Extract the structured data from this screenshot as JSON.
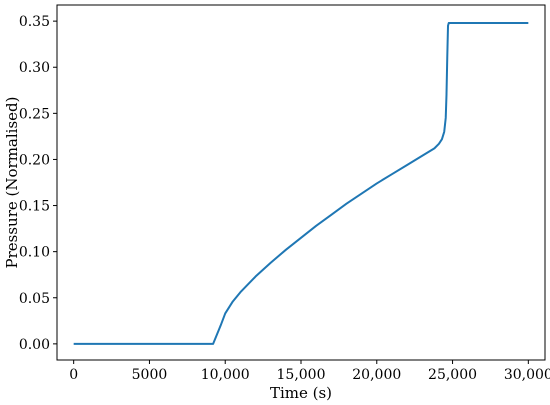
{
  "chart_data": {
    "type": "line",
    "xlabel": "Time (s)",
    "ylabel": "Pressure (Normalised)",
    "xlim": [
      -1100,
      31100
    ],
    "ylim": [
      -0.0175,
      0.3675
    ],
    "x_ticks": [
      0,
      5000,
      10000,
      15000,
      20000,
      25000,
      30000
    ],
    "x_tick_labels": [
      "0",
      "5000",
      "10,000",
      "15,000",
      "20,000",
      "25,000",
      "30,000"
    ],
    "y_ticks": [
      0.0,
      0.05,
      0.1,
      0.15,
      0.2,
      0.25,
      0.3,
      0.35
    ],
    "y_tick_labels": [
      "0.00",
      "0.05",
      "0.10",
      "0.15",
      "0.20",
      "0.25",
      "0.30",
      "0.35"
    ],
    "grid": false,
    "series_color": "#1f77b4",
    "series": [
      {
        "x": [
          0,
          9200,
          9400,
          9700,
          10000,
          10500,
          11000,
          12000,
          13000,
          14000,
          15000,
          16000,
          17000,
          18000,
          19000,
          20000,
          21000,
          22000,
          23000,
          23800,
          24100,
          24300,
          24450,
          24550,
          24600,
          24650,
          24700,
          24750,
          30000
        ],
        "y": [
          0,
          0,
          0.008,
          0.02,
          0.033,
          0.046,
          0.056,
          0.073,
          0.088,
          0.102,
          0.115,
          0.128,
          0.14,
          0.152,
          0.163,
          0.174,
          0.184,
          0.194,
          0.204,
          0.212,
          0.217,
          0.222,
          0.23,
          0.245,
          0.27,
          0.31,
          0.345,
          0.348,
          0.348
        ]
      }
    ]
  }
}
